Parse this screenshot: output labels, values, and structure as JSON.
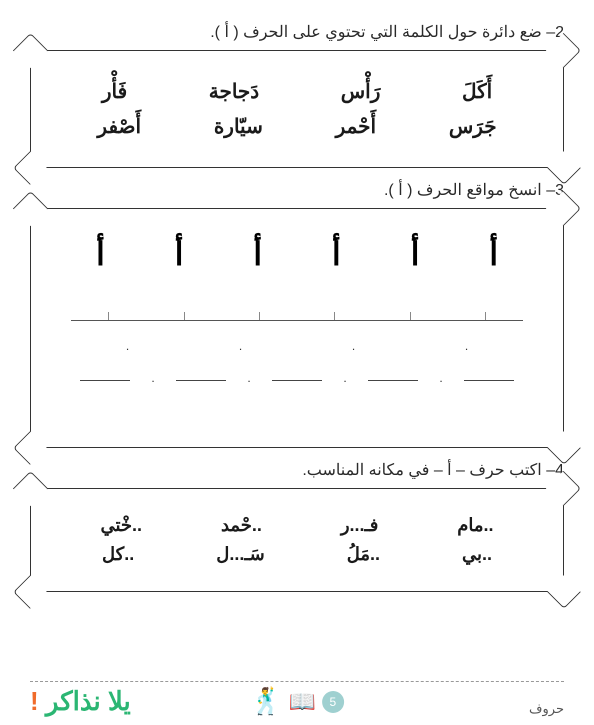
{
  "exercises": {
    "ex2": {
      "number": "2",
      "instruction": "ضع دائرة حول الكلمة التي تحتوي على الحرف ( أ ).",
      "row1": [
        "أَكَلَ",
        "رَأْس",
        "دَجاجة",
        "فَأْر"
      ],
      "row2": [
        "جَرَس",
        "أَحْمر",
        "سيّارة",
        "أَصْفر"
      ]
    },
    "ex3": {
      "number": "3",
      "instruction": "انسخ مواقع الحرف ( أ ).",
      "letters": [
        "أ",
        "أ",
        "أ",
        "أ",
        "أ",
        "أ"
      ]
    },
    "ex4": {
      "number": "4",
      "instruction": "اكتب حرف – أ – في مكانه المناسب.",
      "row1": [
        "..مام",
        "فـ...ر",
        "..حْمد",
        "..خْتي"
      ],
      "row2": [
        "..بي",
        "..مَلُ",
        "سَـ...ل",
        "..كل"
      ]
    }
  },
  "footer": {
    "section_label": "حروف",
    "page_number": "5",
    "logo_text": "يلا نذاكر",
    "logo_punct": "!"
  },
  "colors": {
    "text": "#1a1a1a",
    "border": "#333333",
    "green": "#2bb673",
    "blue": "#1a9ed9",
    "orange": "#f06b2a",
    "page_badge": "#9fd0d0"
  }
}
